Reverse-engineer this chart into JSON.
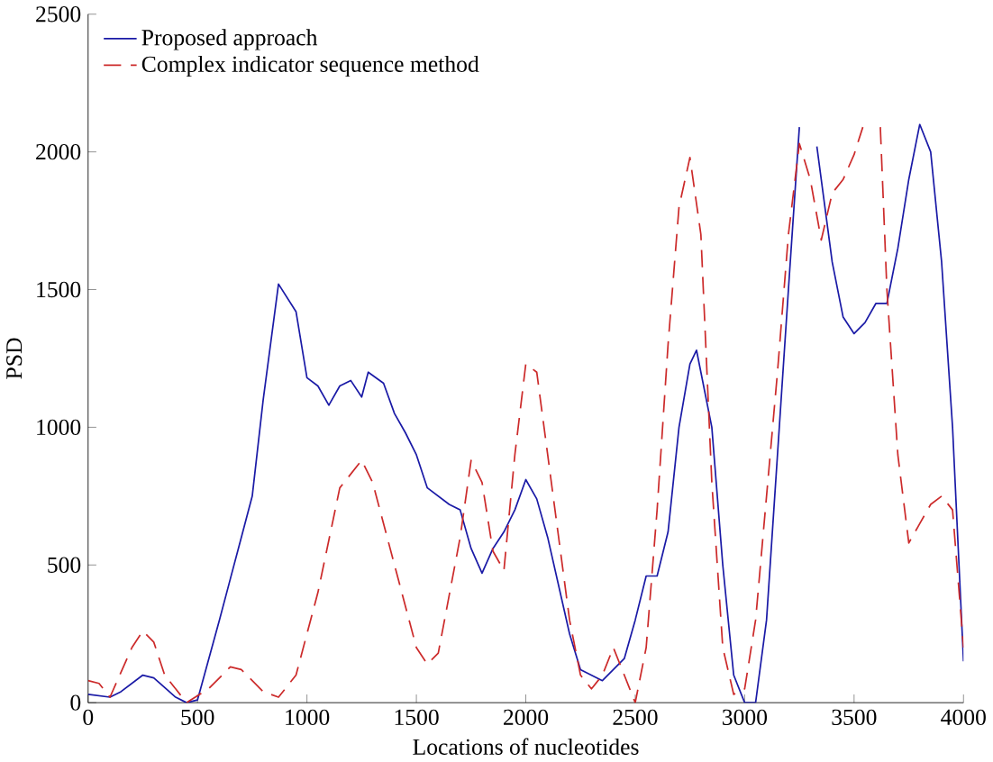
{
  "chart_data": {
    "type": "line",
    "xlabel": "Locations of nucleotides",
    "ylabel": "PSD",
    "xlim": [
      0,
      4000
    ],
    "ylim": [
      0,
      2500
    ],
    "xticks": [
      0,
      500,
      1000,
      1500,
      2000,
      2500,
      3000,
      3500,
      4000
    ],
    "yticks": [
      0,
      500,
      1000,
      1500,
      2000,
      2500
    ],
    "legend": "top left",
    "grid": false,
    "series": [
      {
        "name": "Proposed approach",
        "color": "#1a1aa6",
        "line_style": "solid",
        "x": [
          0,
          100,
          150,
          250,
          300,
          400,
          450,
          500,
          600,
          700,
          750,
          800,
          850,
          870,
          950,
          1000,
          1050,
          1100,
          1150,
          1200,
          1250,
          1280,
          1350,
          1400,
          1450,
          1500,
          1550,
          1650,
          1700,
          1750,
          1800,
          1850,
          1900,
          1950,
          2000,
          2050,
          2100,
          2200,
          2250,
          2350,
          2450,
          2500,
          2550,
          2600,
          2650,
          2700,
          2750,
          2780,
          2850,
          2900,
          2950,
          3000,
          3050,
          3100,
          3200,
          3250,
          3290,
          3330,
          3400,
          3450,
          3500,
          3550,
          3600,
          3650,
          3700,
          3750,
          3800,
          3850,
          3900,
          3950,
          4000
        ],
        "values": [
          30,
          20,
          40,
          100,
          90,
          20,
          0,
          10,
          300,
          600,
          750,
          1100,
          1400,
          1520,
          1420,
          1180,
          1150,
          1080,
          1150,
          1170,
          1110,
          1200,
          1160,
          1050,
          980,
          900,
          780,
          720,
          700,
          560,
          470,
          560,
          620,
          700,
          810,
          740,
          600,
          250,
          120,
          80,
          160,
          300,
          460,
          460,
          620,
          1000,
          1230,
          1280,
          1000,
          500,
          100,
          0,
          0,
          300,
          1500,
          2090,
          null,
          2020,
          1600,
          1400,
          1340,
          1380,
          1450,
          1450,
          1650,
          1900,
          2100,
          2000,
          1600,
          1000,
          150
        ]
      },
      {
        "name": "Complex indicator sequence method",
        "color": "#cc2a2a",
        "line_style": "dashed",
        "x": [
          0,
          50,
          100,
          200,
          250,
          300,
          350,
          400,
          450,
          550,
          650,
          700,
          800,
          870,
          950,
          1050,
          1150,
          1250,
          1300,
          1400,
          1500,
          1550,
          1600,
          1700,
          1750,
          1800,
          1850,
          1900,
          1950,
          2000,
          2050,
          2100,
          2200,
          2250,
          2300,
          2350,
          2400,
          2450,
          2500,
          2550,
          2600,
          2650,
          2700,
          2750,
          2800,
          2850,
          2900,
          2950,
          3000,
          3050,
          3150,
          3200,
          3250,
          3300,
          3350,
          3400,
          3450,
          3500,
          3540,
          3580,
          3620,
          3650,
          3700,
          3750,
          3800,
          3850,
          3900,
          3950,
          4000
        ],
        "values": [
          80,
          70,
          20,
          200,
          260,
          220,
          100,
          50,
          0,
          50,
          130,
          120,
          40,
          20,
          100,
          400,
          780,
          880,
          800,
          500,
          200,
          140,
          180,
          600,
          880,
          800,
          550,
          480,
          900,
          1230,
          1200,
          900,
          300,
          100,
          50,
          100,
          200,
          100,
          0,
          200,
          700,
          1300,
          1800,
          1980,
          1700,
          800,
          200,
          30,
          50,
          300,
          1200,
          1700,
          2030,
          1900,
          1680,
          1850,
          1900,
          1990,
          2090,
          null,
          2090,
          1500,
          900,
          580,
          650,
          720,
          750,
          700,
          200
        ]
      }
    ]
  }
}
